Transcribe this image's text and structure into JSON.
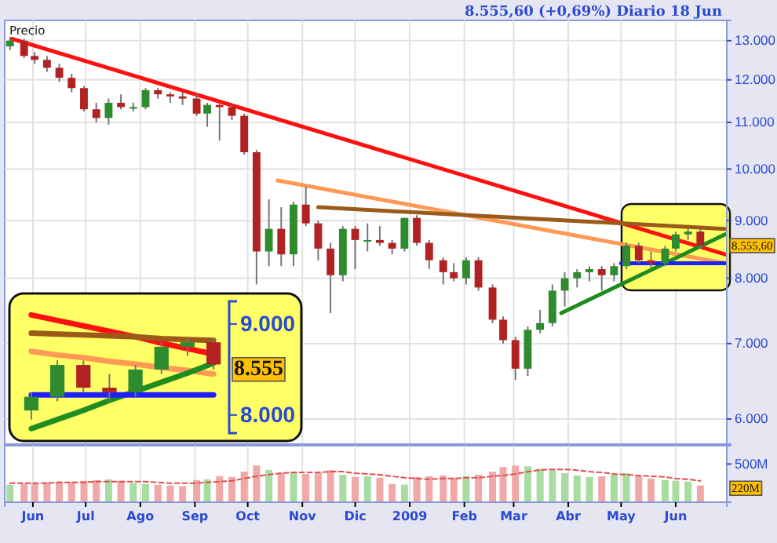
{
  "chart_data": [
    {
      "type": "candlestick",
      "title": "8.555,60 (+0,69%)    Diario  18 Jun",
      "ylabel": "Precio",
      "log": "y",
      "grid": true,
      "tick_labels": "y",
      "xlim": [
        "2008-05-16",
        "2009-06-30"
      ],
      "ylim": [
        5700,
        13550
      ],
      "xticks": [
        {
          "value": "2008-06-01",
          "label": null
        },
        {
          "value": "2008-07-01",
          "label": null
        },
        {
          "value": "2008-08-01",
          "label": null
        },
        {
          "value": "2008-09-01",
          "label": null
        },
        {
          "value": "2008-10-01",
          "label": null
        },
        {
          "value": "2008-11-01",
          "label": null
        },
        {
          "value": "2008-12-01",
          "label": null
        },
        {
          "value": "2009-01-01",
          "label": null
        },
        {
          "value": "2009-02-01",
          "label": null
        },
        {
          "value": "2009-03-01",
          "label": null
        },
        {
          "value": "2009-04-01",
          "label": null
        },
        {
          "value": "2009-05-01",
          "label": null
        },
        {
          "value": "2009-06-01",
          "label": null
        }
      ],
      "yticks": [
        {
          "value": 6000,
          "label": "6.000"
        },
        {
          "value": 7000,
          "label": "7.000"
        },
        {
          "value": 8000,
          "label": "8.000"
        },
        {
          "value": 9000,
          "label": "9.000"
        },
        {
          "value": 10000,
          "label": "10.000"
        },
        {
          "value": 11000,
          "label": "11.000"
        },
        {
          "value": 12000,
          "label": "12.000"
        },
        {
          "value": 13000,
          "label": "13.000"
        }
      ],
      "annotations": [
        {
          "text": "8.555,60",
          "x": "2009-06-30",
          "y": 8555.6
        }
      ],
      "series": [
        {
          "x": [
            "2008-05-19",
            "2008-05-27",
            "2008-06-02",
            "2008-06-09",
            "2008-06-16",
            "2008-06-23",
            "2008-06-30",
            "2008-07-07",
            "2008-07-14",
            "2008-07-21",
            "2008-07-28",
            "2008-08-04",
            "2008-08-11",
            "2008-08-18",
            "2008-08-25",
            "2008-09-02",
            "2008-09-08",
            "2008-09-15",
            "2008-09-22",
            "2008-09-29",
            "2008-10-06",
            "2008-10-13",
            "2008-10-20",
            "2008-10-27",
            "2008-11-03",
            "2008-11-10",
            "2008-11-17",
            "2008-11-24",
            "2008-12-01",
            "2008-12-08",
            "2008-12-15",
            "2008-12-22",
            "2008-12-29",
            "2009-01-05",
            "2009-01-12",
            "2009-01-20",
            "2009-01-26",
            "2009-02-02",
            "2009-02-09",
            "2009-02-17",
            "2009-02-23",
            "2009-03-02",
            "2009-03-09",
            "2009-03-16",
            "2009-03-23",
            "2009-03-30",
            "2009-04-06",
            "2009-04-13",
            "2009-04-20",
            "2009-04-27",
            "2009-05-04",
            "2009-05-11",
            "2009-05-18",
            "2009-05-26",
            "2009-06-01",
            "2009-06-08",
            "2009-06-15"
          ],
          "ohlc": [
            [
              12850,
              13100,
              12750,
              13000
            ],
            [
              13000,
              13050,
              12550,
              12600
            ],
            [
              12600,
              12700,
              12400,
              12500
            ],
            [
              12500,
              12600,
              12200,
              12300
            ],
            [
              12300,
              12400,
              11950,
              12050
            ],
            [
              12050,
              12150,
              11700,
              11800
            ],
            [
              11800,
              11850,
              11250,
              11300
            ],
            [
              11300,
              11450,
              11000,
              11100
            ],
            [
              11100,
              11550,
              10950,
              11450
            ],
            [
              11450,
              11650,
              11300,
              11350
            ],
            [
              11350,
              11450,
              11250,
              11350
            ],
            [
              11350,
              11800,
              11300,
              11750
            ],
            [
              11750,
              11800,
              11550,
              11650
            ],
            [
              11650,
              11700,
              11450,
              11600
            ],
            [
              11600,
              11700,
              11400,
              11550
            ],
            [
              11550,
              11650,
              11150,
              11200
            ],
            [
              11200,
              11450,
              10900,
              11400
            ],
            [
              11400,
              11450,
              10600,
              11350
            ],
            [
              11350,
              11400,
              11050,
              11150
            ],
            [
              11150,
              11200,
              10300,
              10350
            ],
            [
              10350,
              10400,
              7900,
              8450
            ],
            [
              8450,
              9400,
              8200,
              8850
            ],
            [
              8850,
              9250,
              8200,
              8400
            ],
            [
              8400,
              9350,
              8200,
              9300
            ],
            [
              9300,
              9650,
              8900,
              8950
            ],
            [
              8950,
              9000,
              8300,
              8500
            ],
            [
              8500,
              8600,
              7450,
              8050
            ],
            [
              8050,
              8900,
              7950,
              8850
            ],
            [
              8850,
              8900,
              8150,
              8650
            ],
            [
              8650,
              8950,
              8450,
              8650
            ],
            [
              8650,
              8900,
              8550,
              8600
            ],
            [
              8600,
              8650,
              8400,
              8500
            ],
            [
              8500,
              9050,
              8450,
              9050
            ],
            [
              9050,
              9100,
              8550,
              8600
            ],
            [
              8600,
              8650,
              8150,
              8300
            ],
            [
              8300,
              8350,
              7900,
              8100
            ],
            [
              8100,
              8250,
              7950,
              8000
            ],
            [
              8000,
              8350,
              7900,
              8300
            ],
            [
              8300,
              8350,
              7800,
              7850
            ],
            [
              7850,
              7900,
              7300,
              7350
            ],
            [
              7350,
              7400,
              7000,
              7050
            ],
            [
              7050,
              7100,
              6500,
              6650
            ],
            [
              6650,
              7250,
              6550,
              7200
            ],
            [
              7200,
              7500,
              7150,
              7300
            ],
            [
              7300,
              7900,
              7250,
              7800
            ],
            [
              7800,
              8100,
              7550,
              8000
            ],
            [
              8000,
              8150,
              7850,
              8100
            ],
            [
              8100,
              8200,
              7950,
              8150
            ],
            [
              8150,
              8200,
              7800,
              8050
            ],
            [
              8050,
              8250,
              7950,
              8200
            ],
            [
              8200,
              8600,
              8150,
              8550
            ],
            [
              8550,
              8600,
              8250,
              8300
            ],
            [
              8300,
              8450,
              8150,
              8250
            ],
            [
              8250,
              8550,
              8200,
              8500
            ],
            [
              8500,
              8800,
              8450,
              8750
            ],
            [
              8750,
              8850,
              8650,
              8800
            ],
            [
              8800,
              8850,
              8500,
              8555.6
            ]
          ],
          "colors": [
            "#2e8b2e",
            "#b22222",
            "#b22222",
            "#b22222",
            "#b22222",
            "#b22222",
            "#b22222",
            "#b22222",
            "#2e8b2e",
            "#b22222",
            "#2e8b2e",
            "#2e8b2e",
            "#b22222",
            "#b22222",
            "#b22222",
            "#b22222",
            "#2e8b2e",
            "#b22222",
            "#b22222",
            "#b22222",
            "#b22222",
            "#2e8b2e",
            "#b22222",
            "#2e8b2e",
            "#b22222",
            "#b22222",
            "#b22222",
            "#2e8b2e",
            "#b22222",
            "#2e8b2e",
            "#b22222",
            "#b22222",
            "#2e8b2e",
            "#b22222",
            "#b22222",
            "#b22222",
            "#b22222",
            "#2e8b2e",
            "#b22222",
            "#b22222",
            "#b22222",
            "#b22222",
            "#2e8b2e",
            "#2e8b2e",
            "#2e8b2e",
            "#2e8b2e",
            "#2e8b2e",
            "#2e8b2e",
            "#b22222",
            "#2e8b2e",
            "#2e8b2e",
            "#b22222",
            "#b22222",
            "#2e8b2e",
            "#2e8b2e",
            "#2e8b2e",
            "#b22222"
          ]
        },
        {
          "type": "line",
          "color": "#ff1010",
          "x": [
            "2008-05-20",
            "2009-06-29"
          ],
          "values": [
            13050,
            8400
          ]
        },
        {
          "type": "line",
          "color": "#ff9955",
          "x": [
            "2008-10-18",
            "2009-06-29"
          ],
          "values": [
            9770,
            8250
          ]
        },
        {
          "type": "line",
          "color": "#9c5a1a",
          "x": [
            "2008-11-10",
            "2009-06-29"
          ],
          "values": [
            9250,
            8850
          ]
        },
        {
          "type": "line",
          "color": "#1e8c1e",
          "x": [
            "2009-03-28",
            "2009-06-29"
          ],
          "values": [
            7450,
            8750
          ]
        },
        {
          "type": "line",
          "color": "#1f1fff",
          "x": [
            "2009-05-01",
            "2009-06-29"
          ],
          "values": [
            8250,
            8250
          ]
        }
      ]
    },
    {
      "type": "candlestick",
      "tick_labels": "y",
      "categories": [
        null,
        null,
        null,
        null,
        null,
        null,
        null,
        null
      ],
      "ylim": [
        7800,
        9250
      ],
      "yticks": [
        {
          "value": 8000,
          "label": "8.000"
        },
        {
          "value": 9000,
          "label": "9.000"
        }
      ],
      "annotations": [
        "8.555"
      ],
      "series": [
        {
          "ohlc": [
            [
              8050,
              8250,
              7950,
              8200
            ],
            [
              8200,
              8600,
              8150,
              8550
            ],
            [
              8550,
              8600,
              8250,
              8300
            ],
            [
              8300,
              8450,
              8150,
              8250
            ],
            [
              8250,
              8550,
              8200,
              8500
            ],
            [
              8500,
              8800,
              8450,
              8750
            ],
            [
              8750,
              8850,
              8650,
              8800
            ],
            [
              8800,
              8850,
              8500,
              8555.6
            ]
          ],
          "colors": [
            "#2e8b2e",
            "#2e8b2e",
            "#b22222",
            "#b22222",
            "#2e8b2e",
            "#2e8b2e",
            "#2e8b2e",
            "#b22222"
          ]
        },
        {
          "type": "line",
          "color": "#ff1010",
          "values": [
            9100,
            9040,
            8980,
            8920,
            8860,
            8790,
            8730,
            8670
          ]
        },
        {
          "type": "line",
          "color": "#ff9955",
          "values": [
            8700,
            8660,
            8630,
            8590,
            8560,
            8520,
            8490,
            8450
          ]
        },
        {
          "type": "line",
          "color": "#9c5a1a",
          "values": [
            8900,
            8890,
            8880,
            8870,
            8860,
            8840,
            8830,
            8820
          ]
        },
        {
          "type": "line",
          "color": "#1e8c1e",
          "values": [
            7850,
            7950,
            8050,
            8160,
            8260,
            8360,
            8460,
            8570
          ]
        },
        {
          "type": "line",
          "color": "#1f1fff",
          "values": [
            8220,
            8220,
            8220,
            8220,
            8220,
            8220,
            8220,
            8220
          ]
        }
      ]
    },
    {
      "type": "bar",
      "grid": "x",
      "xlim": [
        "2008-05-16",
        "2009-06-30"
      ],
      "ylim": [
        0,
        740
      ],
      "xticks": [
        {
          "value": "2008-06-01",
          "label": "Jun"
        },
        {
          "value": "2008-07-01",
          "label": "Jul"
        },
        {
          "value": "2008-08-01",
          "label": "Ago"
        },
        {
          "value": "2008-09-01",
          "label": "Sep"
        },
        {
          "value": "2008-10-01",
          "label": "Oct"
        },
        {
          "value": "2008-11-01",
          "label": "Nov"
        },
        {
          "value": "2008-12-01",
          "label": "Dic"
        },
        {
          "value": "2009-01-01",
          "label": "2009"
        },
        {
          "value": "2009-02-01",
          "label": "Feb"
        },
        {
          "value": "2009-03-01",
          "label": "Mar"
        },
        {
          "value": "2009-04-01",
          "label": "Abr"
        },
        {
          "value": "2009-05-01",
          "label": "May"
        },
        {
          "value": "2009-06-01",
          "label": "Jun"
        }
      ],
      "yticks": [
        {
          "value": 500,
          "label": "500M"
        }
      ],
      "annotations": [
        "220M"
      ],
      "x": [
        "2008-05-19",
        "2008-05-27",
        "2008-06-02",
        "2008-06-09",
        "2008-06-16",
        "2008-06-23",
        "2008-06-30",
        "2008-07-07",
        "2008-07-14",
        "2008-07-21",
        "2008-07-28",
        "2008-08-04",
        "2008-08-11",
        "2008-08-18",
        "2008-08-25",
        "2008-09-02",
        "2008-09-08",
        "2008-09-15",
        "2008-09-22",
        "2008-09-29",
        "2008-10-06",
        "2008-10-13",
        "2008-10-20",
        "2008-10-27",
        "2008-11-03",
        "2008-11-10",
        "2008-11-17",
        "2008-11-24",
        "2008-12-01",
        "2008-12-08",
        "2008-12-15",
        "2008-12-22",
        "2008-12-29",
        "2009-01-05",
        "2009-01-12",
        "2009-01-20",
        "2009-01-26",
        "2009-02-02",
        "2009-02-09",
        "2009-02-17",
        "2009-02-23",
        "2009-03-02",
        "2009-03-09",
        "2009-03-16",
        "2009-03-23",
        "2009-03-30",
        "2009-04-06",
        "2009-04-13",
        "2009-04-20",
        "2009-04-27",
        "2009-05-04",
        "2009-05-11",
        "2009-05-18",
        "2009-05-26",
        "2009-06-01",
        "2009-06-08",
        "2009-06-15"
      ],
      "series": [
        {
          "values": [
            230,
            240,
            250,
            260,
            270,
            260,
            280,
            290,
            300,
            280,
            250,
            240,
            230,
            220,
            210,
            290,
            300,
            340,
            330,
            400,
            480,
            420,
            380,
            400,
            370,
            390,
            420,
            360,
            330,
            340,
            320,
            240,
            230,
            330,
            340,
            350,
            320,
            340,
            360,
            400,
            460,
            480,
            470,
            440,
            420,
            380,
            350,
            330,
            340,
            360,
            380,
            340,
            310,
            290,
            280,
            270,
            220
          ],
          "colors": [
            "#a8dca0",
            "#f0a8a8",
            "#f0a8a8",
            "#f0a8a8",
            "#f0a8a8",
            "#f0a8a8",
            "#f0a8a8",
            "#f0a8a8",
            "#a8dca0",
            "#f0a8a8",
            "#a8dca0",
            "#a8dca0",
            "#f0a8a8",
            "#f0a8a8",
            "#f0a8a8",
            "#f0a8a8",
            "#a8dca0",
            "#f0a8a8",
            "#f0a8a8",
            "#f0a8a8",
            "#f0a8a8",
            "#a8dca0",
            "#f0a8a8",
            "#a8dca0",
            "#f0a8a8",
            "#f0a8a8",
            "#f0a8a8",
            "#a8dca0",
            "#f0a8a8",
            "#a8dca0",
            "#f0a8a8",
            "#f0a8a8",
            "#a8dca0",
            "#f0a8a8",
            "#f0a8a8",
            "#f0a8a8",
            "#f0a8a8",
            "#a8dca0",
            "#f0a8a8",
            "#f0a8a8",
            "#f0a8a8",
            "#f0a8a8",
            "#a8dca0",
            "#a8dca0",
            "#a8dca0",
            "#a8dca0",
            "#a8dca0",
            "#a8dca0",
            "#f0a8a8",
            "#a8dca0",
            "#a8dca0",
            "#f0a8a8",
            "#f0a8a8",
            "#a8dca0",
            "#a8dca0",
            "#a8dca0",
            "#f0a8a8"
          ]
        },
        {
          "type": "line",
          "color": "#e05050",
          "line_style": "dashed",
          "values": [
            250,
            250,
            250,
            250,
            260,
            260,
            260,
            270,
            270,
            270,
            270,
            270,
            260,
            250,
            250,
            250,
            260,
            270,
            280,
            310,
            340,
            360,
            380,
            390,
            390,
            390,
            400,
            400,
            380,
            370,
            360,
            340,
            320,
            310,
            300,
            310,
            310,
            320,
            320,
            340,
            350,
            370,
            400,
            420,
            430,
            430,
            420,
            400,
            390,
            370,
            360,
            350,
            340,
            330,
            310,
            300,
            280
          ]
        }
      ]
    }
  ]
}
